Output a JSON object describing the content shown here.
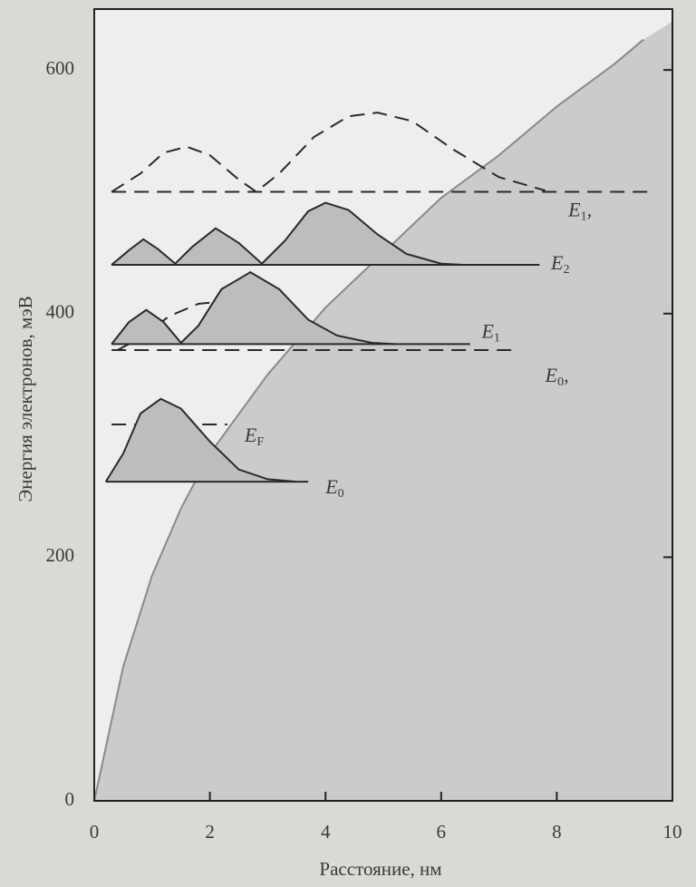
{
  "chart_data": {
    "type": "line",
    "xlabel": "Расстояние, нм",
    "ylabel": "Энергия электронов, мэВ",
    "xlim": [
      0,
      10
    ],
    "ylim": [
      0,
      650
    ],
    "xticks": [
      0,
      2,
      4,
      6,
      8,
      10
    ],
    "yticks": [
      0,
      200,
      400,
      600
    ],
    "potential": {
      "color": "#8a8a8a",
      "fill": "#cbcbca",
      "x": [
        0,
        0.5,
        1,
        1.5,
        2,
        3,
        4,
        5,
        6,
        7,
        8,
        9,
        9.5
      ],
      "values": [
        0,
        110,
        185,
        240,
        285,
        350,
        405,
        450,
        495,
        530,
        570,
        605,
        625
      ]
    },
    "levels": [
      {
        "label": "E",
        "sub": "1",
        "suffix": ",",
        "energy": 500,
        "x_range": [
          0.3,
          9.7
        ],
        "style": "dashed",
        "fill": null,
        "x": [
          0.3,
          0.8,
          1.2,
          1.6,
          2.0,
          2.5,
          2.8,
          3.2,
          3.8,
          4.4,
          4.9,
          5.5,
          6.2,
          7.0,
          7.8
        ],
        "values": [
          500,
          515,
          532,
          537,
          530,
          510,
          500,
          515,
          545,
          562,
          565,
          558,
          535,
          512,
          501
        ]
      },
      {
        "label": "E",
        "sub": "2",
        "suffix": "",
        "energy": 440,
        "x_range": [
          0.3,
          7.7
        ],
        "style": "solid",
        "fill": "#bdbdbc",
        "x": [
          0.3,
          0.6,
          0.85,
          1.1,
          1.4,
          1.7,
          2.1,
          2.5,
          2.9,
          3.3,
          3.7,
          4.0,
          4.4,
          4.9,
          5.4,
          6.0,
          6.4
        ],
        "values": [
          440,
          452,
          461,
          453,
          441,
          455,
          470,
          458,
          441,
          460,
          484,
          491,
          485,
          465,
          449,
          441,
          440
        ]
      },
      {
        "label": "E",
        "sub": "0",
        "suffix": ",",
        "energy": 370,
        "x_range": [
          0.3,
          7.3
        ],
        "style": "dashed",
        "fill": null,
        "x": [
          0.4,
          0.8,
          1.3,
          1.8,
          2.2,
          2.6
        ],
        "values": [
          370,
          380,
          398,
          408,
          410,
          405
        ]
      },
      {
        "label": "E",
        "sub": "1",
        "suffix": "",
        "energy": 375,
        "x_range": [
          0.3,
          6.5
        ],
        "style": "solid",
        "fill": "#bdbdbc",
        "x": [
          0.3,
          0.6,
          0.9,
          1.2,
          1.5,
          1.8,
          2.2,
          2.7,
          3.2,
          3.7,
          4.2,
          4.8,
          5.2
        ],
        "values": [
          375,
          393,
          403,
          393,
          376,
          390,
          420,
          434,
          420,
          395,
          382,
          376,
          375
        ]
      },
      {
        "label": "E",
        "sub": "F",
        "suffix": "",
        "energy": 309,
        "x_range": [
          0.3,
          2.3
        ],
        "style": "dashed",
        "fill": null,
        "x": [],
        "values": []
      },
      {
        "label": "E",
        "sub": "0",
        "suffix": "",
        "energy": 262,
        "x_range": [
          0.2,
          3.7
        ],
        "style": "solid",
        "fill": "#bdbdbc",
        "x": [
          0.2,
          0.5,
          0.8,
          1.15,
          1.5,
          2.0,
          2.5,
          3.0,
          3.5
        ],
        "values": [
          262,
          285,
          318,
          330,
          322,
          295,
          272,
          264,
          262
        ]
      }
    ]
  }
}
